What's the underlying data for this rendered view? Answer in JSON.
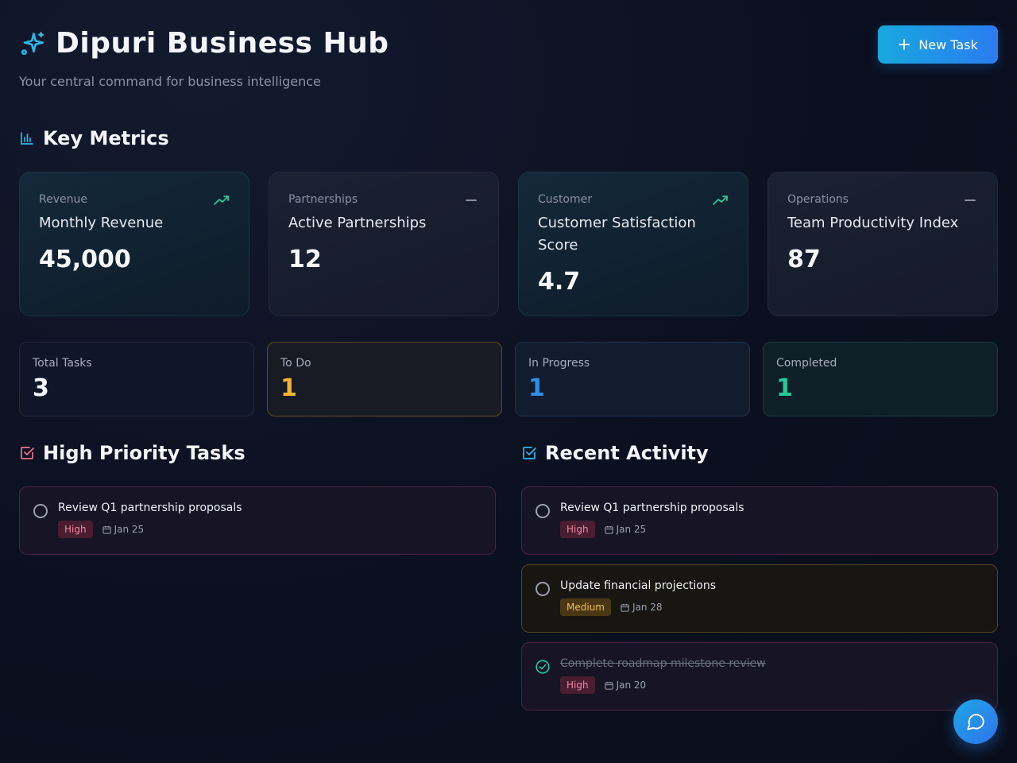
{
  "header": {
    "title": "Dipuri Business Hub",
    "subtitle": "Your central command for business intelligence",
    "icon": "sparkles-icon"
  },
  "new_task_label": "New Task",
  "key_metrics": {
    "title": "Key Metrics",
    "cards": [
      {
        "category": "Revenue",
        "name": "Monthly Revenue",
        "value": "45,000",
        "trend": "up"
      },
      {
        "category": "Partnerships",
        "name": "Active Partnerships",
        "value": "12",
        "trend": "flat"
      },
      {
        "category": "Customer",
        "name": "Customer Satisfaction Score",
        "value": "4.7",
        "trend": "up"
      },
      {
        "category": "Operations",
        "name": "Team Productivity Index",
        "value": "87",
        "trend": "flat"
      }
    ]
  },
  "stats": [
    {
      "label": "Total Tasks",
      "value": "3",
      "color": "#f4f6fb"
    },
    {
      "label": "To Do",
      "value": "1",
      "color": "#f0b432"
    },
    {
      "label": "In Progress",
      "value": "1",
      "color": "#2f8fe6"
    },
    {
      "label": "Completed",
      "value": "1",
      "color": "#27c89a"
    }
  ],
  "high_priority": {
    "title": "High Priority Tasks",
    "tasks": [
      {
        "title": "Review Q1 partnership proposals",
        "priority": "High",
        "date": "Jan 25",
        "done": false
      }
    ]
  },
  "recent_activity": {
    "title": "Recent Activity",
    "tasks": [
      {
        "title": "Review Q1 partnership proposals",
        "priority": "High",
        "date": "Jan 25",
        "done": false
      },
      {
        "title": "Update financial projections",
        "priority": "Medium",
        "date": "Jan 28",
        "done": false
      },
      {
        "title": "Complete roadmap milestone review",
        "priority": "High",
        "date": "Jan 20",
        "done": true
      }
    ]
  },
  "colors": {
    "accent": "#18a8df",
    "trend_up": "#27c89a",
    "high_section_icon": "#f0708f",
    "activity_section_icon": "#2fb6ea"
  }
}
